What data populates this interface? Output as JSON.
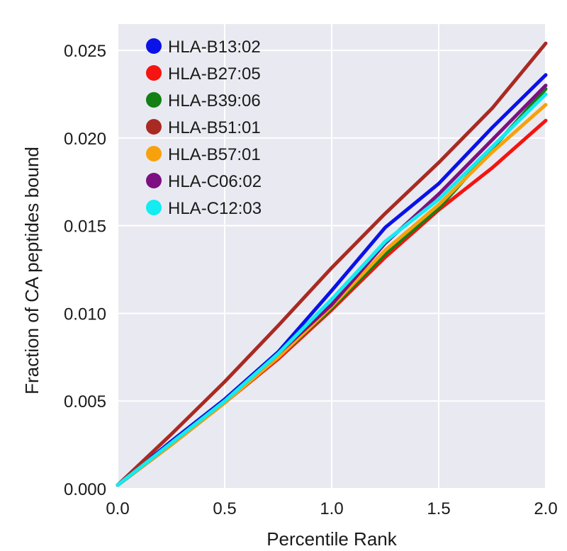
{
  "chart_data": {
    "type": "line",
    "title": "",
    "xlabel": "Percentile Rank",
    "ylabel": "Fraction of CA peptides bound",
    "xlim": [
      0.0,
      2.0
    ],
    "ylim": [
      0.0,
      0.0265
    ],
    "xticks": [
      "0.0",
      "0.5",
      "1.0",
      "1.5",
      "2.0"
    ],
    "yticks": [
      "0.000",
      "0.005",
      "0.010",
      "0.015",
      "0.020",
      "0.025"
    ],
    "grid": true,
    "background": "#e9e9f1",
    "legend_position": "top-left",
    "series": [
      {
        "name": "HLA-B13:02",
        "color": "#0a12e8",
        "x": [
          0.0,
          0.25,
          0.5,
          0.75,
          1.0,
          1.25,
          1.5,
          1.75,
          2.0
        ],
        "y": [
          0.0002,
          0.0027,
          0.0051,
          0.0078,
          0.0113,
          0.0149,
          0.0174,
          0.0206,
          0.0236
        ]
      },
      {
        "name": "HLA-B27:05",
        "color": "#f5140f",
        "x": [
          0.0,
          0.25,
          0.5,
          0.75,
          1.0,
          1.25,
          1.5,
          1.75,
          2.0
        ],
        "y": [
          0.0002,
          0.0025,
          0.0049,
          0.0074,
          0.0102,
          0.0132,
          0.0159,
          0.0183,
          0.021
        ]
      },
      {
        "name": "HLA-B39:06",
        "color": "#137f15",
        "x": [
          0.0,
          0.25,
          0.5,
          0.75,
          1.0,
          1.25,
          1.5,
          1.75,
          2.0
        ],
        "y": [
          0.0002,
          0.0025,
          0.0049,
          0.0075,
          0.0103,
          0.0134,
          0.016,
          0.0194,
          0.0228
        ]
      },
      {
        "name": "HLA-B51:01",
        "color": "#a82a22",
        "x": [
          0.0,
          0.25,
          0.5,
          0.75,
          1.0,
          1.25,
          1.5,
          1.75,
          2.0
        ],
        "y": [
          0.0002,
          0.0031,
          0.0061,
          0.0093,
          0.0126,
          0.0157,
          0.0186,
          0.0217,
          0.0254
        ]
      },
      {
        "name": "HLA-B57:01",
        "color": "#f7a20d",
        "x": [
          0.0,
          0.25,
          0.5,
          0.75,
          1.0,
          1.25,
          1.5,
          1.75,
          2.0
        ],
        "y": [
          0.0002,
          0.0025,
          0.0049,
          0.0075,
          0.0104,
          0.0136,
          0.0162,
          0.0192,
          0.0219
        ]
      },
      {
        "name": "HLA-C06:02",
        "color": "#7d0f83",
        "x": [
          0.0,
          0.25,
          0.5,
          0.75,
          1.0,
          1.25,
          1.5,
          1.75,
          2.0
        ],
        "y": [
          0.0002,
          0.0026,
          0.005,
          0.0077,
          0.0105,
          0.014,
          0.0168,
          0.0199,
          0.023
        ]
      },
      {
        "name": "HLA-C12:03",
        "color": "#13ecf0",
        "x": [
          0.0,
          0.25,
          0.5,
          0.75,
          1.0,
          1.25,
          1.5,
          1.75,
          2.0
        ],
        "y": [
          0.0002,
          0.0026,
          0.005,
          0.0077,
          0.0108,
          0.0141,
          0.0165,
          0.0195,
          0.0225
        ]
      }
    ]
  }
}
